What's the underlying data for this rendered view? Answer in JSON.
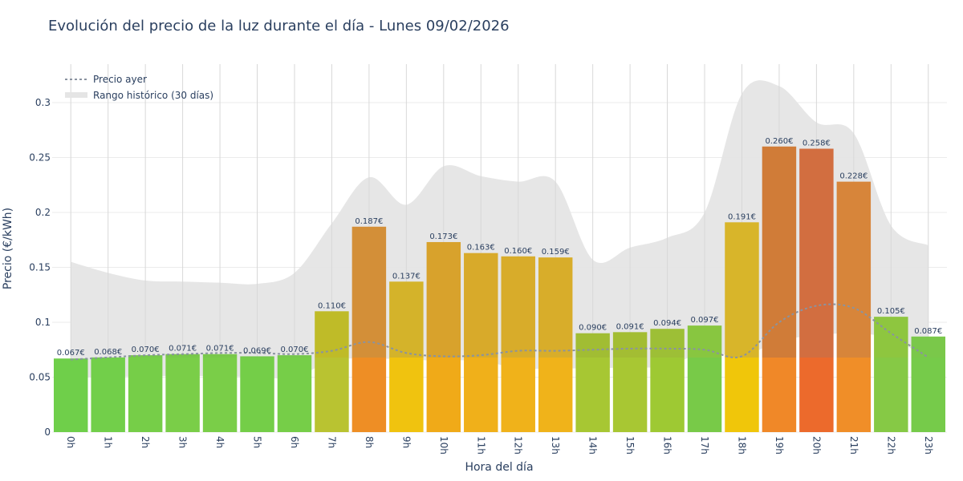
{
  "chart_data": {
    "type": "bar",
    "title": "Evolución del precio de la luz durante el día - Lunes 09/02/2026",
    "xlabel": "Hora del día",
    "ylabel": "Precio (€/kWh)",
    "ylim": [
      0,
      0.335
    ],
    "yticks": [
      "0",
      "0.05",
      "0.1",
      "0.15",
      "0.2",
      "0.25",
      "0.3"
    ],
    "categories": [
      "0h",
      "1h",
      "2h",
      "3h",
      "4h",
      "5h",
      "6h",
      "7h",
      "8h",
      "9h",
      "10h",
      "11h",
      "12h",
      "13h",
      "14h",
      "15h",
      "16h",
      "17h",
      "18h",
      "19h",
      "20h",
      "21h",
      "22h",
      "23h"
    ],
    "series": [
      {
        "values": [
          0.067,
          0.068,
          0.07,
          0.071,
          0.071,
          0.069,
          0.07,
          0.11,
          0.187,
          0.137,
          0.173,
          0.163,
          0.16,
          0.159,
          0.09,
          0.091,
          0.094,
          0.097,
          0.191,
          0.26,
          0.258,
          0.228,
          0.105,
          0.087
        ],
        "labels": [
          "0.067€",
          "0.068€",
          "0.070€",
          "0.071€",
          "0.071€",
          "0.069€",
          "0.070€",
          "0.110€",
          "0.187€",
          "0.137€",
          "0.173€",
          "0.163€",
          "0.160€",
          "0.159€",
          "0.090€",
          "0.091€",
          "0.094€",
          "0.097€",
          "0.191€",
          "0.260€",
          "0.258€",
          "0.228€",
          "0.105€",
          "0.087€"
        ],
        "top_colors": [
          "#70c94c",
          "#73c84c",
          "#76c84c",
          "#79c84a",
          "#79c84a",
          "#74c84c",
          "#76c84c",
          "#bfbb28",
          "#d38f38",
          "#d4b32a",
          "#d8a22c",
          "#d8aa2a",
          "#d8ac2a",
          "#d8ad2a",
          "#a1bd33",
          "#a3bd33",
          "#9dbf36",
          "#88c640",
          "#d8b52a",
          "#d07c38",
          "#d26e40",
          "#d7853a",
          "#8ec63f",
          "#7ac84a"
        ],
        "bottom_colors": [
          "#6fcf4a",
          "#72cf4a",
          "#76ce48",
          "#7ace48",
          "#7ace48",
          "#74ce48",
          "#76ce48",
          "#b9c331",
          "#ee8e25",
          "#f0c30f",
          "#f0aa18",
          "#f0b01a",
          "#f0b21a",
          "#f0b31a",
          "#a7c733",
          "#a8c733",
          "#9ec933",
          "#78ca48",
          "#f0c60a",
          "#f08828",
          "#ec6a2c",
          "#f08e28",
          "#86c945",
          "#76cb4a"
        ]
      },
      {
        "name": "Precio ayer",
        "values": [
          0.066,
          0.068,
          0.07,
          0.071,
          0.072,
          0.072,
          0.071,
          0.074,
          0.082,
          0.072,
          0.069,
          0.07,
          0.074,
          0.074,
          0.075,
          0.076,
          0.076,
          0.075,
          0.069,
          0.1,
          0.115,
          0.113,
          0.09,
          0.068
        ]
      },
      {
        "name": "Rango histórico (30 días)",
        "upper": [
          0.155,
          0.145,
          0.138,
          0.137,
          0.136,
          0.135,
          0.145,
          0.19,
          0.232,
          0.207,
          0.242,
          0.233,
          0.228,
          0.228,
          0.157,
          0.168,
          0.177,
          0.2,
          0.308,
          0.315,
          0.282,
          0.272,
          0.188,
          0.17
        ],
        "lower": [
          0.05,
          0.05,
          0.051,
          0.051,
          0.051,
          0.05,
          0.05,
          0.065,
          0.067,
          0.066,
          0.065,
          0.065,
          0.058,
          0.058,
          0.058,
          0.059,
          0.06,
          0.073,
          0.069,
          0.083,
          0.088,
          0.09,
          0.085,
          0.067
        ]
      }
    ],
    "colors": {
      "line": "#8a93a0",
      "range": "#e5e5e5",
      "grid": "#ebebeb",
      "vgrid": "#d8d8d8"
    },
    "legend_position": "top-left",
    "grid": true
  }
}
